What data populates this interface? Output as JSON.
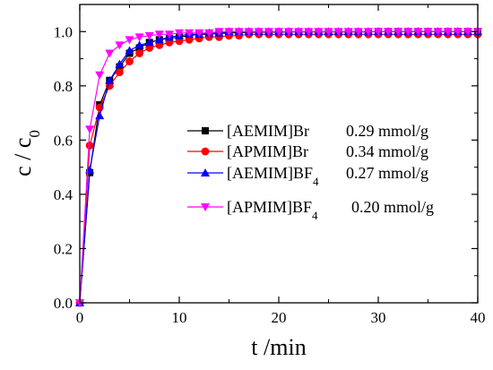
{
  "chart_data": {
    "type": "line",
    "xlabel": "t /min",
    "ylabel": "c / c",
    "ylabel_subscript": "0",
    "xlim": [
      0,
      40
    ],
    "ylim": [
      0.0,
      1.1
    ],
    "xticks": [
      "0",
      "10",
      "20",
      "30",
      "40"
    ],
    "yticks": [
      "0.0",
      "0.2",
      "0.4",
      "0.6",
      "0.8",
      "1.0"
    ],
    "legend_position": "center-right",
    "grid": false,
    "series": [
      {
        "name": "[AEMIM]Br",
        "name_subscript": "",
        "capacity": "0.29 mmol/g",
        "color": "#000000",
        "marker": "square",
        "x": [
          0,
          1,
          2,
          3,
          4,
          5,
          6,
          7,
          8,
          9,
          10,
          11,
          12,
          13,
          14,
          15,
          16,
          17,
          18,
          19,
          20,
          21,
          22,
          23,
          24,
          25,
          26,
          27,
          28,
          29,
          30,
          31,
          32,
          33,
          34,
          35,
          36,
          37,
          38,
          39,
          40
        ],
        "y": [
          0.0,
          0.48,
          0.73,
          0.82,
          0.87,
          0.92,
          0.94,
          0.96,
          0.97,
          0.975,
          0.98,
          0.985,
          0.99,
          0.99,
          0.993,
          0.995,
          0.996,
          0.997,
          0.998,
          0.998,
          0.998,
          0.999,
          0.999,
          0.999,
          0.999,
          0.999,
          0.999,
          0.999,
          0.999,
          0.999,
          1.0,
          1.0,
          1.0,
          1.0,
          1.0,
          1.0,
          1.0,
          1.0,
          1.0,
          1.0,
          1.0
        ]
      },
      {
        "name": "[APMIM]Br",
        "name_subscript": "",
        "capacity": "0.34 mmol/g",
        "color": "#ff0000",
        "marker": "circle",
        "x": [
          0,
          1,
          2,
          3,
          4,
          5,
          6,
          7,
          8,
          9,
          10,
          11,
          12,
          13,
          14,
          15,
          16,
          17,
          18,
          19,
          20,
          21,
          22,
          23,
          24,
          25,
          26,
          27,
          28,
          29,
          30,
          31,
          32,
          33,
          34,
          35,
          36,
          37,
          38,
          39,
          40
        ],
        "y": [
          0.0,
          0.58,
          0.72,
          0.8,
          0.85,
          0.89,
          0.92,
          0.94,
          0.95,
          0.96,
          0.965,
          0.97,
          0.975,
          0.98,
          0.98,
          0.985,
          0.985,
          0.99,
          0.99,
          0.99,
          0.99,
          0.99,
          0.99,
          0.99,
          0.99,
          0.99,
          0.99,
          0.99,
          0.99,
          0.99,
          0.99,
          0.99,
          0.99,
          0.99,
          0.99,
          0.99,
          0.99,
          0.99,
          0.99,
          0.99,
          0.99
        ]
      },
      {
        "name": "[AEMIM]BF",
        "name_subscript": "4",
        "capacity": "0.27 mmol/g",
        "color": "#0000ff",
        "marker": "triangle-up",
        "x": [
          0,
          1,
          2,
          3,
          4,
          5,
          6,
          7,
          8,
          9,
          10,
          11,
          12,
          13,
          14,
          15,
          16,
          17,
          18,
          19,
          20,
          21,
          22,
          23,
          24,
          25,
          26,
          27,
          28,
          29,
          30,
          31,
          32,
          33,
          34,
          35,
          36,
          37,
          38,
          39,
          40
        ],
        "y": [
          0.0,
          0.49,
          0.69,
          0.82,
          0.88,
          0.93,
          0.95,
          0.96,
          0.97,
          0.98,
          0.985,
          0.99,
          0.99,
          0.995,
          0.995,
          1.0,
          1.0,
          1.0,
          1.0,
          1.0,
          1.0,
          1.0,
          1.0,
          1.0,
          1.0,
          1.0,
          1.0,
          1.0,
          1.0,
          1.0,
          1.0,
          1.0,
          1.0,
          1.0,
          1.0,
          1.0,
          1.0,
          1.0,
          1.0,
          1.0,
          1.0
        ]
      },
      {
        "name": "[APMIM]BF",
        "name_subscript": "4",
        "capacity": "0.20 mmol/g",
        "color": "#ff00ff",
        "marker": "triangle-down",
        "x": [
          0,
          1,
          2,
          3,
          4,
          5,
          6,
          7,
          8,
          9,
          10,
          11,
          12,
          13,
          14,
          15,
          16,
          17,
          18,
          19,
          20,
          21,
          22,
          23,
          24,
          25,
          26,
          27,
          28,
          29,
          30,
          31,
          32,
          33,
          34,
          35,
          36,
          37,
          38,
          39,
          40
        ],
        "y": [
          0.0,
          0.64,
          0.84,
          0.92,
          0.95,
          0.97,
          0.98,
          0.985,
          0.99,
          0.99,
          0.995,
          0.995,
          0.995,
          0.995,
          1.0,
          1.0,
          1.0,
          1.0,
          1.0,
          1.0,
          1.0,
          1.0,
          1.0,
          1.0,
          1.0,
          1.0,
          1.0,
          1.0,
          1.0,
          1.0,
          1.0,
          1.0,
          1.0,
          1.0,
          1.0,
          1.0,
          1.0,
          1.0,
          1.0,
          1.0,
          1.0
        ]
      }
    ]
  }
}
